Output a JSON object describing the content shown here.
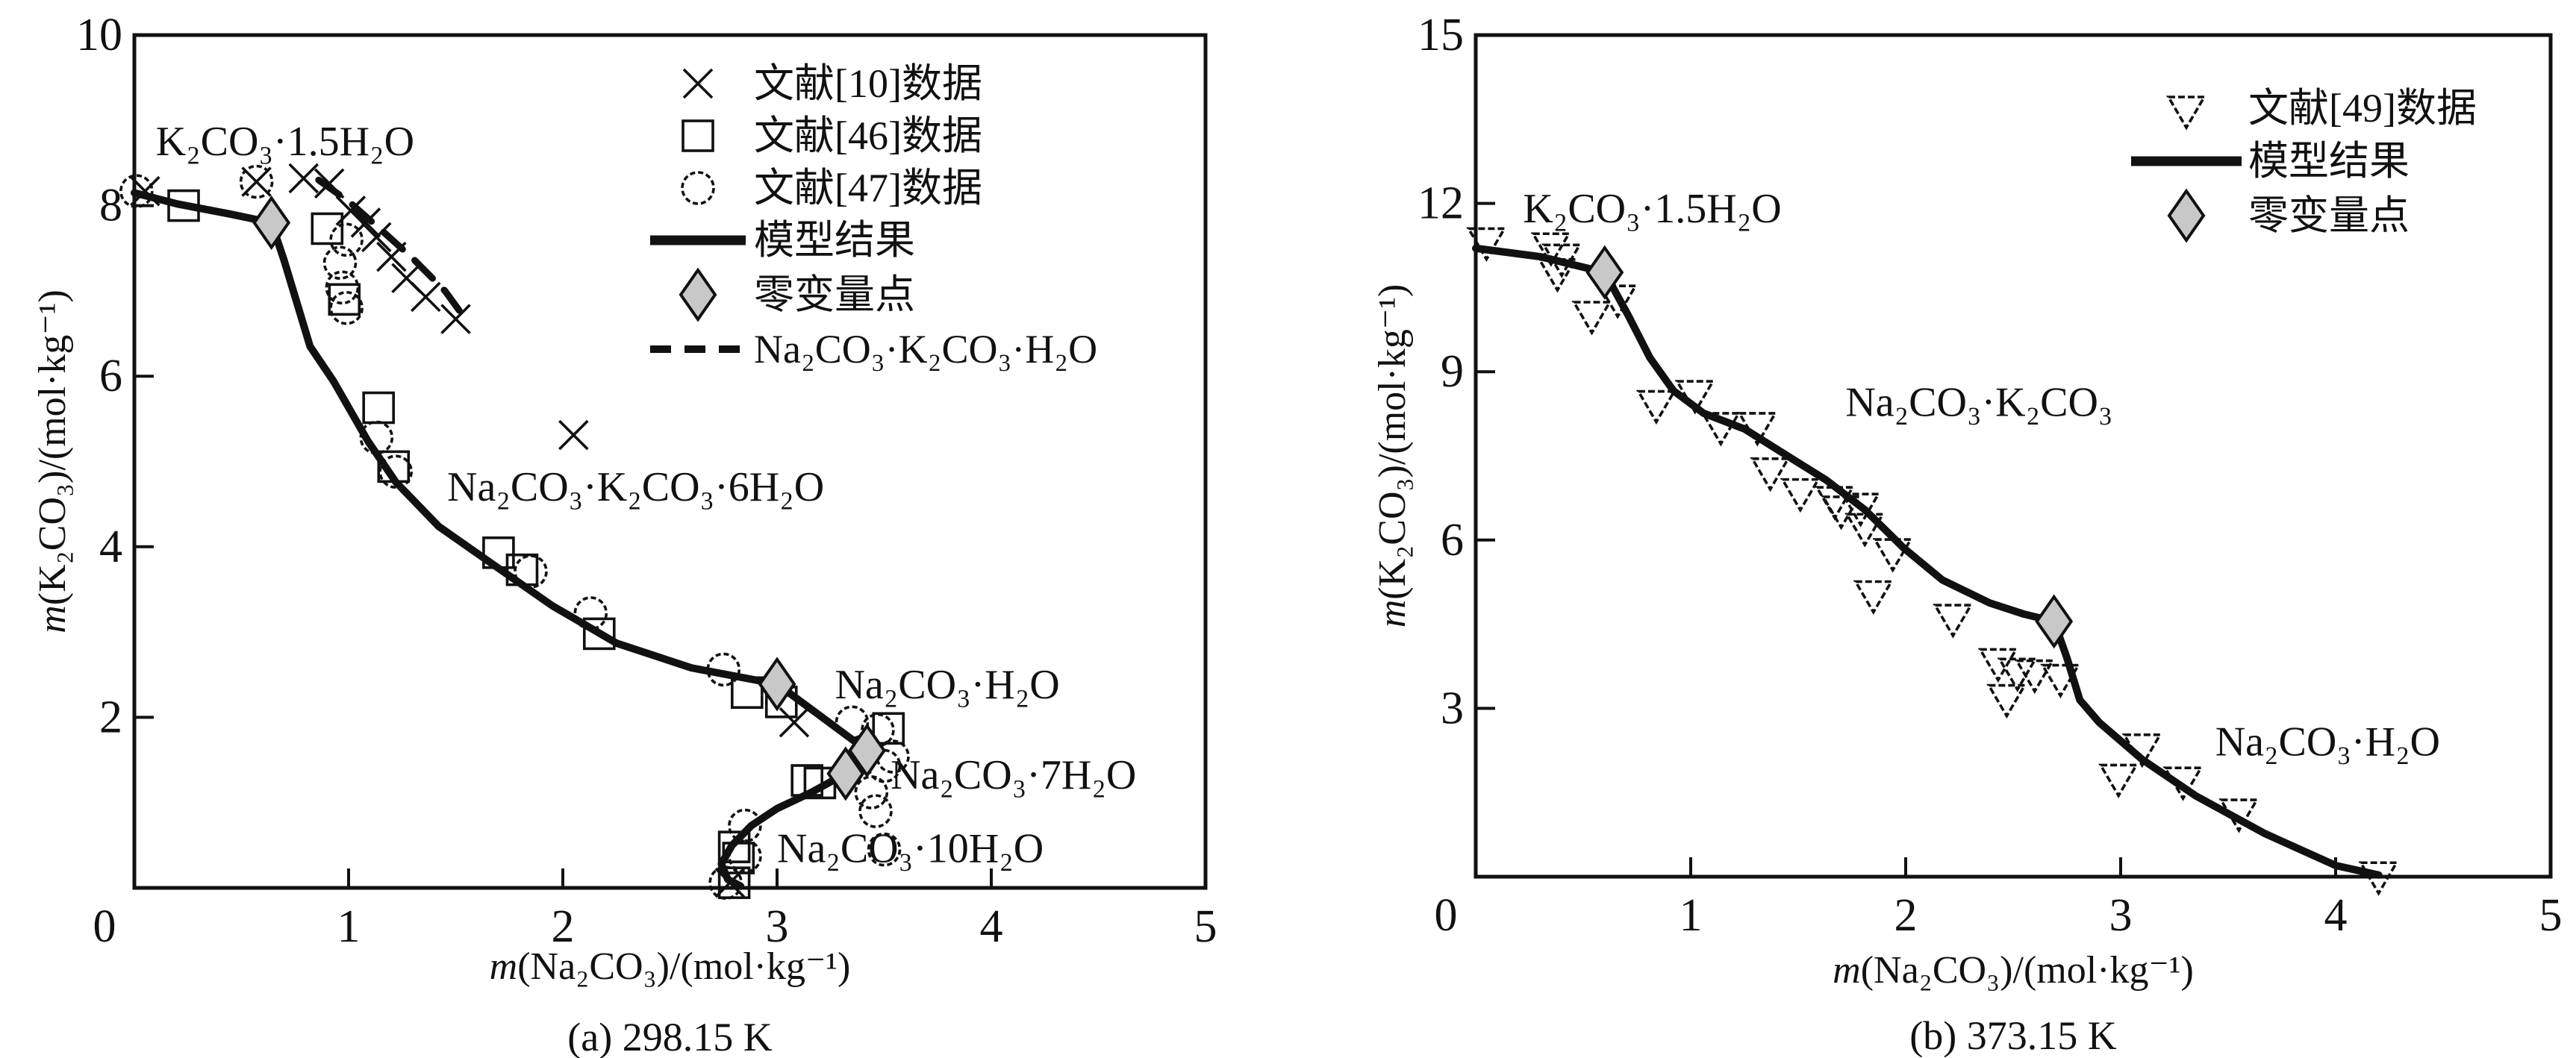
{
  "chart_data": [
    {
      "type": "scatter",
      "title": "(a) 298.15 K",
      "xlabel": "m(Na₂CO₃)/(mol·kg⁻¹)",
      "ylabel": "m(K₂CO₃)/(mol·kg⁻¹)",
      "xlim": [
        0,
        5
      ],
      "ylim": [
        0,
        10
      ],
      "xticks": [
        0,
        1,
        2,
        3,
        4,
        5
      ],
      "yticks": [
        2,
        4,
        6,
        8,
        10
      ],
      "grid": false,
      "legend_position": "upper-center-right-inside",
      "series": [
        {
          "name": "文献[10]数据",
          "marker": "cross",
          "points": [
            [
              0.05,
              8.17
            ],
            [
              0.57,
              8.28
            ],
            [
              0.79,
              8.32
            ],
            [
              0.91,
              8.26
            ],
            [
              1.01,
              7.94
            ],
            [
              1.08,
              7.8
            ],
            [
              1.13,
              7.63
            ],
            [
              1.2,
              7.4
            ],
            [
              1.27,
              7.15
            ],
            [
              1.36,
              6.93
            ],
            [
              1.5,
              6.67
            ],
            [
              2.05,
              5.31
            ],
            [
              3.08,
              1.94
            ],
            [
              2.78,
              0.06
            ]
          ]
        },
        {
          "name": "文献[46]数据",
          "marker": "square",
          "points": [
            [
              0.23,
              8.0
            ],
            [
              0.9,
              7.73
            ],
            [
              0.98,
              6.9
            ],
            [
              1.14,
              5.63
            ],
            [
              1.21,
              4.94
            ],
            [
              1.7,
              3.93
            ],
            [
              1.81,
              3.73
            ],
            [
              2.17,
              2.98
            ],
            [
              2.86,
              2.29
            ],
            [
              3.02,
              2.18
            ],
            [
              3.52,
              1.87
            ],
            [
              3.14,
              1.26
            ],
            [
              3.2,
              1.23
            ],
            [
              2.8,
              0.48
            ],
            [
              2.82,
              0.35
            ],
            [
              2.8,
              0.06
            ]
          ]
        },
        {
          "name": "文献[47]数据",
          "marker": "circle",
          "points": [
            [
              0.01,
              8.17
            ],
            [
              0.57,
              8.28
            ],
            [
              0.99,
              7.6
            ],
            [
              0.96,
              7.33
            ],
            [
              0.97,
              7.04
            ],
            [
              0.99,
              6.8
            ],
            [
              1.13,
              5.28
            ],
            [
              1.22,
              4.88
            ],
            [
              1.85,
              3.71
            ],
            [
              2.13,
              3.22
            ],
            [
              2.75,
              2.56
            ],
            [
              3.35,
              1.94
            ],
            [
              3.47,
              1.85
            ],
            [
              3.54,
              1.54
            ],
            [
              3.5,
              1.43
            ],
            [
              3.44,
              1.12
            ],
            [
              3.46,
              0.9
            ],
            [
              2.85,
              0.73
            ],
            [
              2.85,
              0.37
            ],
            [
              3.5,
              0.45
            ],
            [
              2.76,
              0.06
            ]
          ]
        },
        {
          "name": "模型结果",
          "marker": "solid-line",
          "points": [
            [
              0.0,
              8.15
            ],
            [
              0.2,
              8.02
            ],
            [
              0.45,
              7.9
            ],
            [
              0.64,
              7.8
            ],
            [
              0.7,
              7.35
            ],
            [
              0.76,
              6.85
            ],
            [
              0.82,
              6.35
            ],
            [
              0.93,
              5.94
            ],
            [
              1.09,
              5.24
            ],
            [
              1.22,
              4.76
            ],
            [
              1.42,
              4.24
            ],
            [
              1.67,
              3.8
            ],
            [
              1.95,
              3.31
            ],
            [
              2.25,
              2.87
            ],
            [
              2.6,
              2.58
            ],
            [
              3.0,
              2.39
            ],
            [
              3.2,
              2.02
            ],
            [
              3.42,
              1.61
            ],
            [
              3.36,
              1.45
            ],
            [
              3.32,
              1.34
            ],
            [
              3.16,
              1.12
            ],
            [
              3.0,
              0.93
            ],
            [
              2.88,
              0.73
            ],
            [
              2.79,
              0.5
            ],
            [
              2.74,
              0.28
            ],
            [
              2.77,
              0.1
            ],
            [
              2.83,
              0.02
            ]
          ]
        },
        {
          "name": "零变量点",
          "marker": "diamond",
          "points": [
            [
              0.64,
              7.8
            ],
            [
              3.0,
              2.39
            ],
            [
              3.42,
              1.61
            ],
            [
              3.32,
              1.34
            ]
          ]
        },
        {
          "name": "Na₂CO₃·K₂CO₃·H₂O",
          "marker": "dashed-line",
          "points": [
            [
              0.86,
              8.3
            ],
            [
              1.0,
              8.05
            ],
            [
              1.15,
              7.72
            ],
            [
              1.3,
              7.38
            ],
            [
              1.45,
              7.0
            ],
            [
              1.56,
              6.62
            ]
          ]
        }
      ],
      "annotations": [
        {
          "text": "K₂CO₃·1.5H₂O",
          "x": 0.1,
          "y": 8.75
        },
        {
          "text": "Na₂CO₃·K₂CO₃·6H₂O",
          "x": 1.46,
          "y": 4.7
        },
        {
          "text": "Na₂CO₃·H₂O",
          "x": 3.27,
          "y": 2.38
        },
        {
          "text": "Na₂CO₃·7H₂O",
          "x": 3.53,
          "y": 1.32
        },
        {
          "text": "Na₂CO₃·10H₂O",
          "x": 3.0,
          "y": 0.46
        }
      ]
    },
    {
      "type": "scatter",
      "title": "(b) 373.15 K",
      "xlabel": "m(Na₂CO₃)/(mol·kg⁻¹)",
      "ylabel": "m(K₂CO₃)/(mol·kg⁻¹)",
      "xlim": [
        0,
        5
      ],
      "ylim": [
        0,
        15
      ],
      "xticks": [
        0,
        1,
        2,
        3,
        4,
        5
      ],
      "yticks": [
        3,
        6,
        9,
        12,
        15
      ],
      "grid": false,
      "legend_position": "upper-right-inside",
      "series": [
        {
          "name": "文献[49]数据",
          "marker": "triangle-down",
          "points": [
            [
              0.05,
              11.35
            ],
            [
              0.35,
              11.26
            ],
            [
              0.4,
              11.06
            ],
            [
              0.38,
              10.8
            ],
            [
              0.66,
              10.33
            ],
            [
              0.54,
              10.04
            ],
            [
              1.02,
              8.63
            ],
            [
              0.84,
              8.45
            ],
            [
              1.14,
              8.06
            ],
            [
              1.31,
              8.06
            ],
            [
              1.37,
              7.25
            ],
            [
              1.51,
              6.88
            ],
            [
              1.67,
              6.74
            ],
            [
              1.7,
              6.57
            ],
            [
              1.79,
              6.62
            ],
            [
              1.81,
              6.26
            ],
            [
              1.94,
              5.81
            ],
            [
              1.85,
              5.06
            ],
            [
              2.22,
              4.64
            ],
            [
              2.43,
              3.85
            ],
            [
              2.52,
              3.68
            ],
            [
              2.6,
              3.65
            ],
            [
              2.72,
              3.57
            ],
            [
              2.47,
              3.21
            ],
            [
              3.1,
              2.33
            ],
            [
              2.99,
              1.79
            ],
            [
              3.29,
              1.74
            ],
            [
              3.55,
              1.17
            ],
            [
              4.2,
              0.05
            ]
          ]
        },
        {
          "name": "模型结果",
          "marker": "solid-line",
          "points": [
            [
              0.0,
              11.2
            ],
            [
              0.3,
              11.05
            ],
            [
              0.6,
              10.77
            ],
            [
              0.71,
              10.0
            ],
            [
              0.81,
              9.25
            ],
            [
              0.92,
              8.66
            ],
            [
              1.06,
              8.26
            ],
            [
              1.25,
              7.98
            ],
            [
              1.45,
              7.5
            ],
            [
              1.63,
              7.07
            ],
            [
              1.81,
              6.54
            ],
            [
              1.99,
              5.86
            ],
            [
              2.17,
              5.29
            ],
            [
              2.39,
              4.88
            ],
            [
              2.55,
              4.68
            ],
            [
              2.69,
              4.55
            ],
            [
              2.75,
              3.9
            ],
            [
              2.81,
              3.15
            ],
            [
              2.9,
              2.75
            ],
            [
              3.1,
              2.09
            ],
            [
              3.35,
              1.44
            ],
            [
              3.67,
              0.77
            ],
            [
              4.0,
              0.2
            ],
            [
              4.2,
              0.03
            ]
          ]
        },
        {
          "name": "零变量点",
          "marker": "diamond",
          "points": [
            [
              0.6,
              10.77
            ],
            [
              2.69,
              4.55
            ]
          ]
        }
      ],
      "annotations": [
        {
          "text": "K₂CO₃·1.5H₂O",
          "x": 0.22,
          "y": 11.9
        },
        {
          "text": "Na₂CO₃·K₂CO₃",
          "x": 1.72,
          "y": 8.45
        },
        {
          "text": "Na₂CO₃·H₂O",
          "x": 3.44,
          "y": 2.4
        }
      ]
    }
  ],
  "style": {
    "ink_color": "#111111",
    "diamond_fill": "#c8c8c8",
    "background": "#ffffff"
  }
}
